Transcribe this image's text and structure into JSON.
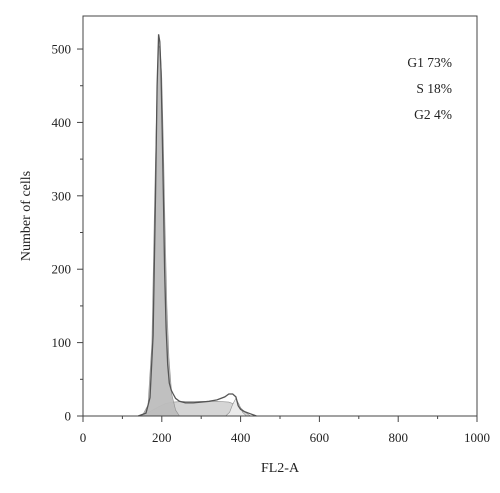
{
  "chart_data": {
    "type": "area",
    "xlabel": "FL2-A",
    "ylabel": "Number of cells",
    "xlim": [
      0,
      1000
    ],
    "ylim": [
      0,
      545
    ],
    "xticks": [
      0,
      200,
      400,
      600,
      800,
      1000
    ],
    "yticks": [
      0,
      100,
      200,
      300,
      400,
      500
    ],
    "grid": false,
    "legend_position": "top-right",
    "legend": [
      {
        "phase": "G1",
        "percent": "73%"
      },
      {
        "phase": "S",
        "percent": "18%"
      },
      {
        "phase": "G2",
        "percent": "4%"
      }
    ],
    "series": [
      {
        "role": "histogram",
        "color": "#555555",
        "x": [
          140,
          160,
          170,
          178,
          184,
          188,
          192,
          195,
          198,
          201,
          204,
          207,
          211,
          215,
          219,
          224,
          229,
          235,
          245,
          260,
          280,
          300,
          320,
          340,
          360,
          370,
          380,
          388,
          394,
          400,
          410,
          425,
          440
        ],
        "y": [
          0,
          4,
          25,
          110,
          300,
          450,
          520,
          510,
          470,
          390,
          300,
          200,
          120,
          70,
          45,
          35,
          30,
          24,
          20,
          18,
          18,
          19,
          20,
          22,
          26,
          30,
          30,
          26,
          14,
          9,
          6,
          3,
          0
        ]
      },
      {
        "role": "G1 fit",
        "color": "#bdbdbd",
        "x": [
          150,
          165,
          175,
          182,
          188,
          192,
          196,
          200,
          204,
          208,
          213,
          218,
          225,
          235,
          245
        ],
        "y": [
          0,
          15,
          100,
          300,
          450,
          505,
          500,
          460,
          370,
          260,
          150,
          80,
          30,
          8,
          0
        ]
      },
      {
        "role": "S fit",
        "color": "#d3d3d3",
        "x": [
          150,
          170,
          190,
          210,
          230,
          260,
          300,
          340,
          370,
          395,
          410,
          425
        ],
        "y": [
          0,
          6,
          12,
          17,
          19,
          20,
          20,
          20,
          19,
          14,
          6,
          0
        ]
      },
      {
        "role": "G2 fit",
        "color": "#ededed",
        "x": [
          362,
          372,
          380,
          388,
          396,
          405,
          415
        ],
        "y": [
          0,
          5,
          16,
          24,
          16,
          5,
          0
        ]
      }
    ]
  }
}
